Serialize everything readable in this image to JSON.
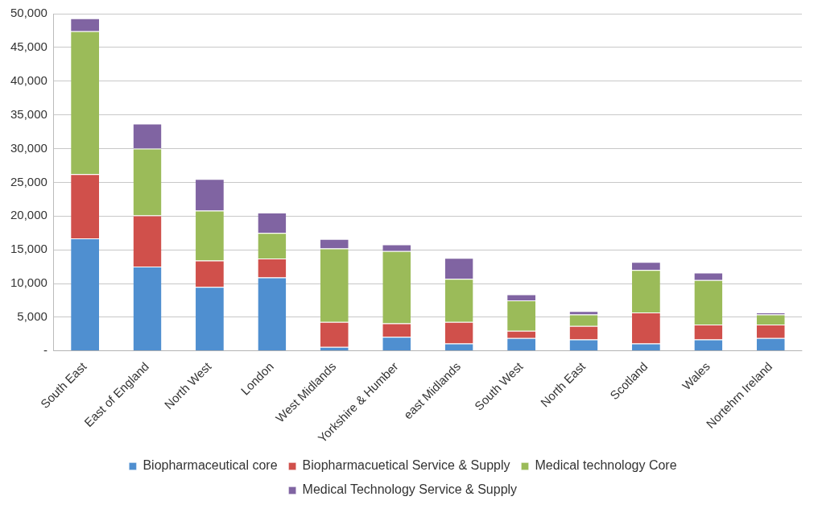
{
  "chart_data": {
    "type": "bar",
    "stacked": true,
    "categories": [
      "South East",
      "East of England",
      "North West",
      "London",
      "West Midlands",
      "Yorkshire & Humber",
      "east Midlands",
      "South West",
      "North East",
      "Scotland",
      "Wales",
      "Nortehrn Ireland"
    ],
    "series": [
      {
        "name": "Biopharmaceutical core",
        "color": "#4f8fd0",
        "values": [
          16700,
          12500,
          9500,
          10900,
          600,
          2100,
          1100,
          1900,
          1700,
          1100,
          1700,
          1900
        ]
      },
      {
        "name": "Biopharmacuetical Service & Supply",
        "color": "#d0504b",
        "values": [
          9500,
          7600,
          3900,
          2800,
          3700,
          2000,
          3200,
          1100,
          2000,
          4600,
          2200,
          2000
        ]
      },
      {
        "name": "Medical technology Core",
        "color": "#9bbb59",
        "values": [
          21200,
          9900,
          7400,
          3800,
          10900,
          10700,
          6400,
          4500,
          1700,
          6300,
          6600,
          1500
        ]
      },
      {
        "name": "Medical Technology Service & Supply",
        "color": "#8064a2",
        "values": [
          1900,
          3700,
          4700,
          3000,
          1400,
          1000,
          3100,
          900,
          500,
          1200,
          1100,
          300
        ]
      }
    ],
    "ylim": [
      0,
      50000
    ],
    "yticks": [
      {
        "value": 0,
        "label": "-"
      },
      {
        "value": 5000,
        "label": "5,000"
      },
      {
        "value": 10000,
        "label": "10,000"
      },
      {
        "value": 15000,
        "label": "15,000"
      },
      {
        "value": 20000,
        "label": "20,000"
      },
      {
        "value": 25000,
        "label": "25,000"
      },
      {
        "value": 30000,
        "label": "30,000"
      },
      {
        "value": 35000,
        "label": "35,000"
      },
      {
        "value": 40000,
        "label": "40,000"
      },
      {
        "value": 45000,
        "label": "45,000"
      },
      {
        "value": 50000,
        "label": "50,000"
      }
    ],
    "grid": "y",
    "legend": "bottom"
  }
}
